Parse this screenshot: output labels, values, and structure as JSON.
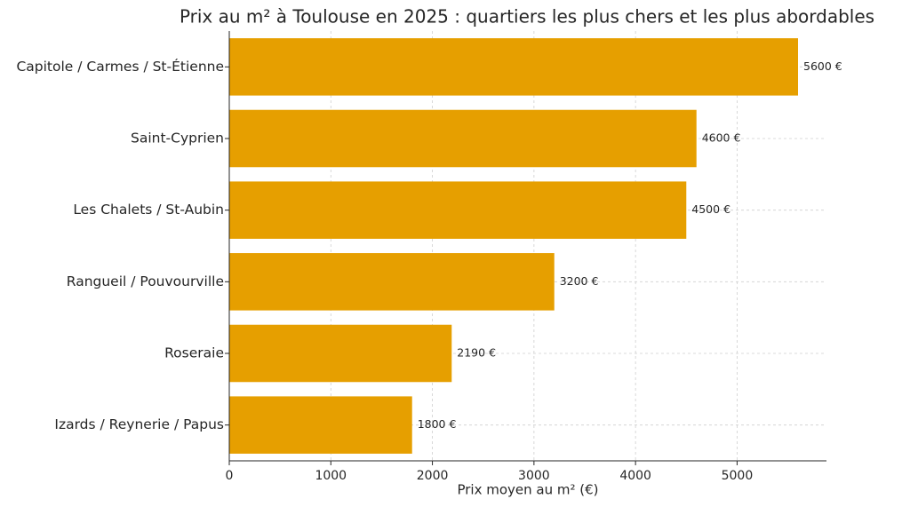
{
  "chart_data": {
    "type": "barh",
    "title": "Prix au m² à Toulouse en 2025 : quartiers les plus chers et les plus abordables",
    "xlabel": "Prix moyen au m² (€)",
    "categories": [
      "Capitole / Carmes / St-Étienne",
      "Saint-Cyprien",
      "Les Chalets / St-Aubin",
      "Rangueil / Pouvourville",
      "Roseraie",
      "Izards / Reynerie / Papus"
    ],
    "values": [
      5600,
      4600,
      4500,
      3200,
      2190,
      1800
    ],
    "value_labels": [
      "5600 €",
      "4600 €",
      "4500 €",
      "3200 €",
      "2190 €",
      "1800 €"
    ],
    "color": "#e69f00",
    "xlim": [
      0,
      5880
    ],
    "xticks": [
      0,
      1000,
      2000,
      3000,
      4000,
      5000
    ],
    "grid": true
  }
}
